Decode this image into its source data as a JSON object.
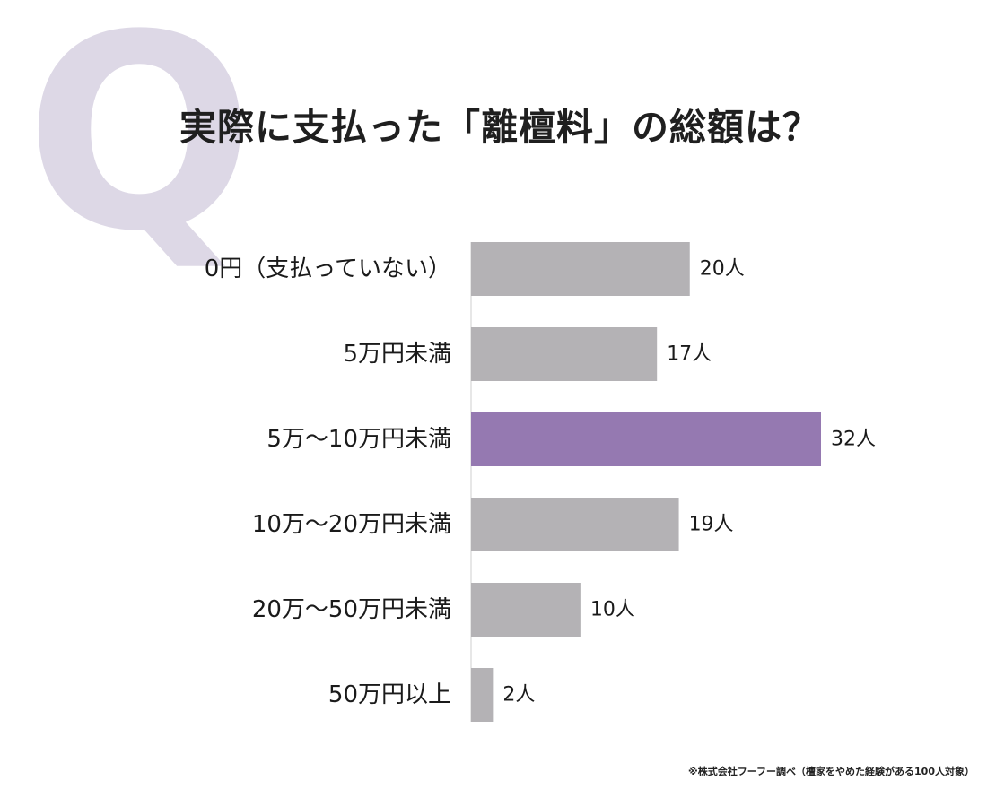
{
  "q_letter": "Q",
  "colors": {
    "bar": "#b4b2b5",
    "highlight": "#9579b1",
    "axis": "#cfcfcf",
    "q_mark": "#ddd8e6"
  },
  "footnote": "※株式会社フーフー調べ（檀家をやめた経験がある100人対象）",
  "chart_data": {
    "type": "bar",
    "orientation": "horizontal",
    "title": "実際に支払った「離檀料」の総額は？",
    "categories": [
      "0円（支払っていない）",
      "5万円未満",
      "5万〜10万円未満",
      "10万〜20万円未満",
      "20万〜50万円未満",
      "50万円以上"
    ],
    "values": [
      20,
      17,
      32,
      19,
      10,
      2
    ],
    "value_labels": [
      "20人",
      "17人",
      "32人",
      "19人",
      "10人",
      "2人"
    ],
    "highlight_index": 2,
    "xlim": [
      0,
      32
    ],
    "grid": false,
    "legend": "none"
  }
}
